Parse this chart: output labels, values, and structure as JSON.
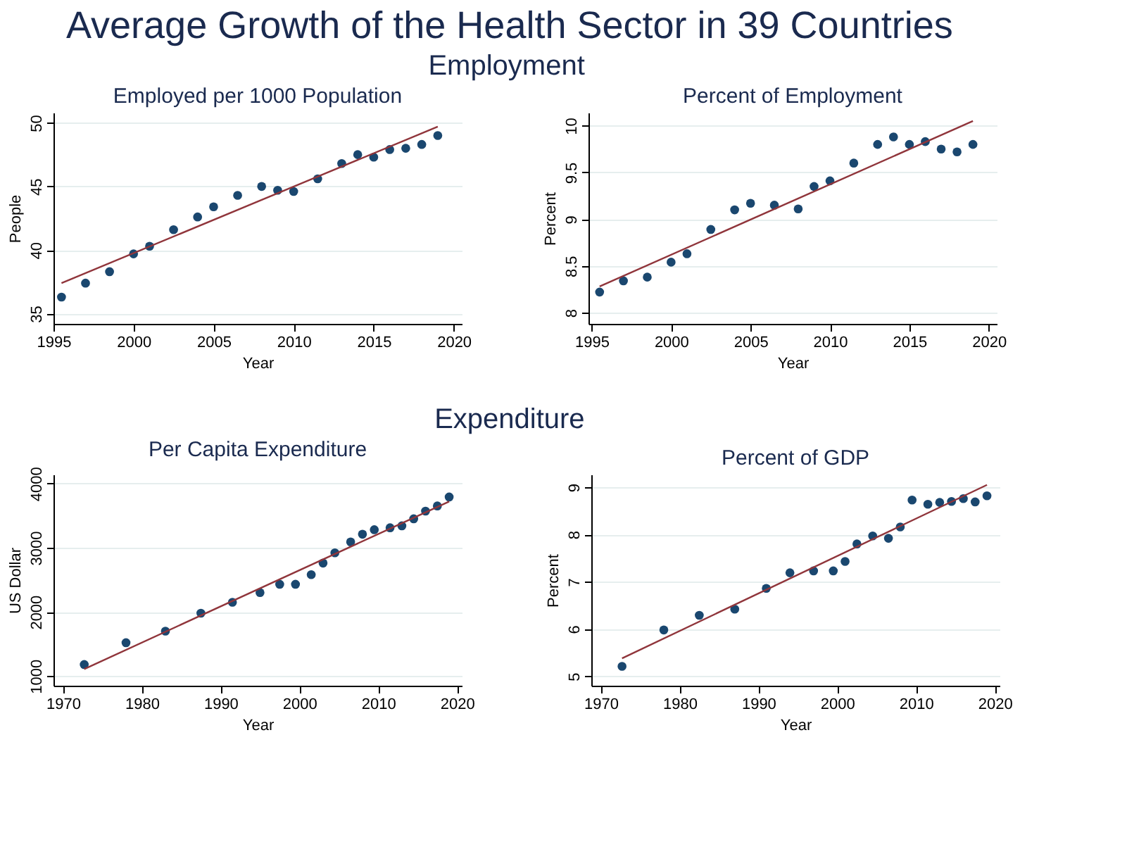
{
  "chart_data": [
    {
      "type": "scatter",
      "title": "Employed per 1000 Population",
      "xlabel": "Year",
      "ylabel": "People",
      "annotations": [
        "Average Growth of the Health Sector in 39 Countries",
        "Employment"
      ],
      "xlim": [
        1995,
        2020.5
      ],
      "xticks": [
        1995,
        2000,
        2005,
        2010,
        2015,
        2020
      ],
      "ylim": [
        34.2,
        50.8
      ],
      "yticks": [
        35,
        40,
        45,
        50
      ],
      "grid": "y",
      "series": [
        {
          "marker": "circle",
          "color": "#1a476f",
          "x": [
            1995.5,
            1997,
            1998.5,
            2000,
            2001,
            2002.5,
            2004,
            2005,
            2006.5,
            2008,
            2009,
            2010,
            2011.5,
            2013,
            2014,
            2015,
            2016,
            2017,
            2018,
            2019
          ],
          "values": [
            36.3,
            37.4,
            38.3,
            39.7,
            40.3,
            41.6,
            42.6,
            43.4,
            44.3,
            45.0,
            44.7,
            44.6,
            45.6,
            46.8,
            47.5,
            47.3,
            47.9,
            48.0,
            48.3,
            49.0
          ]
        },
        {
          "type": "line",
          "color": "#90353b",
          "x": [
            1995.5,
            2019
          ],
          "values": [
            37.4,
            49.7
          ]
        }
      ]
    },
    {
      "type": "scatter",
      "title": "Percent of Employment",
      "xlabel": "Year",
      "ylabel": "Percent",
      "xlim": [
        1994.8,
        2020.5
      ],
      "xticks": [
        1995,
        2000,
        2005,
        2010,
        2015,
        2020
      ],
      "ylim": [
        7.88,
        10.14
      ],
      "yticks": [
        8,
        8.5,
        9,
        9.5,
        10
      ],
      "grid": "y",
      "series": [
        {
          "marker": "circle",
          "color": "#1a476f",
          "x": [
            1995.5,
            1997,
            1998.5,
            2000,
            2001,
            2002.5,
            2004,
            2005,
            2006.5,
            2008,
            2009,
            2010,
            2011.5,
            2013,
            2014,
            2015,
            2016,
            2017,
            2018,
            2019
          ],
          "values": [
            8.22,
            8.34,
            8.38,
            8.54,
            8.63,
            8.89,
            9.1,
            9.17,
            9.15,
            9.11,
            9.35,
            9.41,
            9.6,
            9.8,
            9.88,
            9.8,
            9.83,
            9.75,
            9.72,
            9.8
          ]
        },
        {
          "type": "line",
          "color": "#90353b",
          "x": [
            1995.5,
            2019
          ],
          "values": [
            8.28,
            10.05
          ]
        }
      ]
    },
    {
      "type": "scatter",
      "title": "Per Capita Expenditure",
      "xlabel": "Year",
      "ylabel": "US Dollar",
      "annotations": [
        "Expenditure"
      ],
      "xlim": [
        1968.8,
        2020.6
      ],
      "xticks": [
        1970,
        1980,
        1990,
        2000,
        2010,
        2020
      ],
      "ylim": [
        850,
        4140
      ],
      "yticks": [
        1000,
        2000,
        3000,
        4000
      ],
      "grid": "y",
      "series": [
        {
          "marker": "circle",
          "color": "#1a476f",
          "x": [
            1972.7,
            1978,
            1983,
            1987.5,
            1991.5,
            1995,
            1997.5,
            1999.5,
            2001.5,
            2003,
            2004.5,
            2006.5,
            2008,
            2009.5,
            2011.5,
            2013,
            2014.5,
            2016,
            2017.5,
            2019
          ],
          "values": [
            1180,
            1520,
            1700,
            1980,
            2150,
            2300,
            2430,
            2430,
            2580,
            2760,
            2920,
            3090,
            3210,
            3280,
            3310,
            3340,
            3450,
            3570,
            3650,
            3790
          ]
        },
        {
          "type": "line",
          "color": "#90353b",
          "x": [
            1972.7,
            2019
          ],
          "values": [
            1110,
            3720
          ]
        }
      ]
    },
    {
      "type": "scatter",
      "title": "Percent of GDP",
      "xlabel": "Year",
      "ylabel": "Percent",
      "xlim": [
        1968.8,
        2020.6
      ],
      "xticks": [
        1970,
        1980,
        1990,
        2000,
        2010,
        2020
      ],
      "ylim": [
        4.8,
        9.27
      ],
      "yticks": [
        5,
        6,
        7,
        8,
        9
      ],
      "grid": "y",
      "series": [
        {
          "marker": "circle",
          "color": "#1a476f",
          "x": [
            1972.7,
            1978,
            1982.5,
            1987,
            1991,
            1994,
            1997,
            1999.5,
            2001,
            2002.5,
            2004.5,
            2006.5,
            2008,
            2009.5,
            2011.5,
            2013,
            2014.5,
            2016,
            2017.5,
            2019
          ],
          "values": [
            5.21,
            5.98,
            6.29,
            6.42,
            6.86,
            7.19,
            7.23,
            7.23,
            7.43,
            7.8,
            7.97,
            7.92,
            8.16,
            8.73,
            8.64,
            8.68,
            8.7,
            8.76,
            8.69,
            8.82
          ]
        },
        {
          "type": "line",
          "color": "#90353b",
          "x": [
            1972.7,
            2019
          ],
          "values": [
            5.38,
            9.05
          ]
        }
      ]
    }
  ]
}
